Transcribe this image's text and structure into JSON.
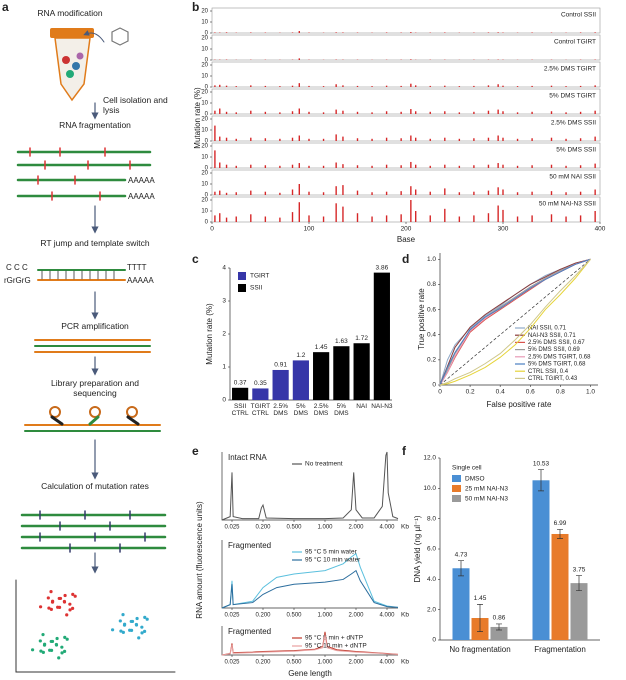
{
  "workflow": {
    "label": "a",
    "steps": [
      "RNA modification",
      "Cell isolation and lysis",
      "RNA fragmentation",
      "RT jump and template switch",
      "PCR amplification",
      "Library preparation and sequencing",
      "Calculation of mutation rates"
    ],
    "poly_a": [
      "AAAAA",
      "AAAAA"
    ],
    "template": {
      "top": "C C C",
      "bottom": "rGrGrG",
      "tail_top": "TTTT",
      "tail_bottom": "AAAAA"
    }
  },
  "chart_data": [
    {
      "type": "spikes",
      "label": "b",
      "ylabel": "Mutation rate (%)",
      "xlabel": "Base",
      "x": [
        3,
        8,
        15,
        25,
        40,
        55,
        70,
        83,
        90,
        100,
        115,
        128,
        135,
        150,
        165,
        180,
        195,
        205,
        210,
        225,
        240,
        255,
        270,
        285,
        295,
        300,
        315,
        330,
        350,
        365,
        380,
        395
      ],
      "xlim": [
        0,
        400
      ],
      "xticks": [
        0,
        100,
        200,
        300,
        400
      ],
      "ylim": [
        0,
        20
      ],
      "yticks": [
        0,
        10,
        20
      ],
      "color": "#d62728",
      "series": [
        {
          "name": "Control SSII",
          "values": [
            0.5,
            0.4,
            0.6,
            0.3,
            0.5,
            0.4,
            0.3,
            0.5,
            1.8,
            0.4,
            0.3,
            0.6,
            0.5,
            0.4,
            0.3,
            0.5,
            0.4,
            0.8,
            0.3,
            0.4,
            0.5,
            0.3,
            0.4,
            0.5,
            0.6,
            0.4,
            0.3,
            0.5,
            0.4,
            0.3,
            0.5,
            0.6
          ]
        },
        {
          "name": "Control TGIRT",
          "values": [
            0.3,
            0.3,
            0.4,
            0.2,
            0.3,
            0.3,
            0.2,
            0.3,
            1.5,
            0.3,
            0.2,
            0.4,
            0.3,
            0.3,
            0.2,
            0.3,
            0.3,
            0.6,
            0.2,
            0.3,
            0.3,
            0.2,
            0.3,
            0.3,
            0.4,
            0.3,
            0.2,
            0.3,
            0.3,
            0.2,
            0.3,
            0.4
          ]
        },
        {
          "name": "2.5% DMS TGIRT",
          "values": [
            1.5,
            2,
            1.2,
            0.8,
            1.5,
            1,
            0.8,
            1.2,
            3.5,
            1,
            0.8,
            2.5,
            1.5,
            1,
            0.8,
            1.2,
            1,
            3,
            1.5,
            1,
            1.2,
            0.8,
            1,
            1.5,
            2.5,
            1.2,
            0.8,
            1,
            1.2,
            0.8,
            1,
            1.5
          ]
        },
        {
          "name": "5% DMS TGIRT",
          "values": [
            3,
            5,
            2,
            1.5,
            3,
            2,
            1.5,
            2.5,
            5,
            2,
            1.5,
            4,
            3,
            2,
            1.5,
            2.5,
            2,
            4.5,
            2.5,
            2,
            2.5,
            1.5,
            2,
            3,
            4,
            2.5,
            1.5,
            2,
            2.5,
            1.5,
            2,
            3
          ]
        },
        {
          "name": "2.5% DMS SSII",
          "values": [
            14,
            4,
            3,
            2,
            3,
            2.5,
            2,
            3,
            5,
            2,
            2,
            6,
            4,
            2.5,
            2,
            3,
            2.5,
            5,
            3,
            2,
            3,
            2,
            2.5,
            3,
            5,
            3,
            2,
            2.5,
            3,
            2,
            2.5,
            4
          ]
        },
        {
          "name": "5% DMS SSII",
          "values": [
            16,
            5,
            3,
            2,
            3,
            2.5,
            2,
            3,
            4.5,
            2,
            2,
            5,
            3.5,
            2.5,
            2,
            3,
            2.5,
            5.5,
            3,
            2,
            3,
            2,
            2.5,
            3,
            4.5,
            3,
            2,
            2.5,
            3,
            2,
            2.5,
            4
          ]
        },
        {
          "name": "50 mM NAI SSII",
          "values": [
            3,
            4,
            2,
            2.5,
            4,
            3,
            2,
            5,
            10,
            3,
            2.5,
            8,
            9,
            4,
            2.5,
            3,
            3.5,
            8,
            5,
            3,
            6,
            2.5,
            3,
            4,
            7,
            5,
            2.5,
            3,
            3.5,
            2.5,
            3,
            5
          ]
        },
        {
          "name": "50 mM NAI-N3 SSII",
          "values": [
            6,
            8,
            4,
            5,
            7,
            5,
            4,
            9,
            18,
            6,
            5,
            17,
            14,
            8,
            5,
            6,
            7,
            20,
            10,
            6,
            12,
            5,
            6,
            8,
            15,
            11,
            5,
            6,
            7,
            5,
            6,
            10
          ]
        }
      ]
    },
    {
      "type": "bar",
      "label": "c",
      "ylabel": "Mutation rate (%)",
      "categories": [
        "SSII CTRL",
        "TGIRT CTRL",
        "2.5% DMS",
        "5% DMS",
        "2.5% DMS",
        "5% DMS",
        "NAI",
        "NAI-N3"
      ],
      "series": [
        {
          "name": "TGIRT",
          "color": "#3636a8",
          "values": [
            null,
            0.35,
            0.91,
            1.2,
            null,
            null,
            null,
            null
          ]
        },
        {
          "name": "SSII",
          "color": "#000000",
          "values": [
            0.37,
            null,
            null,
            null,
            1.45,
            1.63,
            1.72,
            3.86
          ]
        }
      ],
      "ylim": [
        0,
        4
      ],
      "yticks": [
        0,
        1,
        2,
        3,
        4
      ]
    },
    {
      "type": "line",
      "label": "d",
      "xlabel": "False positive rate",
      "ylabel": "True positive rate",
      "x": [
        0,
        0.05,
        0.1,
        0.2,
        0.3,
        0.4,
        0.5,
        0.6,
        0.7,
        0.8,
        0.9,
        1
      ],
      "xlim": [
        0,
        1.05
      ],
      "xticks": [
        0,
        0.2,
        0.4,
        0.6,
        0.8,
        {
          "value": 1,
          "label": "1.0"
        }
      ],
      "ylim": [
        0,
        1.05
      ],
      "yticks": [
        0,
        0.2,
        0.4,
        0.6,
        0.8,
        {
          "value": 1,
          "label": "1.0"
        }
      ],
      "series": [
        {
          "name": "NAI SSII, 0.71",
          "color": "#8fa9c8",
          "values": [
            0,
            0.2,
            0.32,
            0.45,
            0.55,
            0.63,
            0.72,
            0.8,
            0.87,
            0.92,
            0.96,
            1
          ]
        },
        {
          "name": "NAI-N3 SSII, 0.71",
          "color": "#8b3a3a",
          "values": [
            0,
            0.15,
            0.3,
            0.46,
            0.56,
            0.64,
            0.72,
            0.8,
            0.86,
            0.92,
            0.97,
            1
          ]
        },
        {
          "name": "2.5% DMS SSII, 0.67",
          "color": "#d9534f",
          "values": [
            0,
            0.1,
            0.22,
            0.42,
            0.52,
            0.6,
            0.68,
            0.76,
            0.84,
            0.9,
            0.96,
            1
          ]
        },
        {
          "name": "5% DMS SSII, 0.69",
          "color": "#9a9a9a",
          "values": [
            0,
            0.12,
            0.25,
            0.44,
            0.54,
            0.62,
            0.7,
            0.78,
            0.85,
            0.91,
            0.96,
            1
          ]
        },
        {
          "name": "2.5% DMS TGIRT, 0.68",
          "color": "#e899b5",
          "values": [
            0,
            0.1,
            0.23,
            0.43,
            0.53,
            0.61,
            0.69,
            0.77,
            0.84,
            0.9,
            0.96,
            1
          ]
        },
        {
          "name": "5% DMS TGIRT, 0.68",
          "color": "#4a7fc1",
          "values": [
            0,
            0.14,
            0.26,
            0.44,
            0.54,
            0.61,
            0.69,
            0.77,
            0.84,
            0.9,
            0.96,
            1
          ]
        },
        {
          "name": "CTRL SSII, 0.4",
          "color": "#e6d43a",
          "values": [
            0,
            0.01,
            0.03,
            0.08,
            0.14,
            0.22,
            0.32,
            0.45,
            0.6,
            0.72,
            0.85,
            1
          ]
        },
        {
          "name": "CTRL TGIRT, 0.43",
          "color": "#cfc78a",
          "values": [
            0,
            0.02,
            0.05,
            0.1,
            0.17,
            0.25,
            0.36,
            0.48,
            0.62,
            0.75,
            0.87,
            1
          ]
        }
      ]
    },
    {
      "type": "trace",
      "label": "e",
      "title": "Intact RNA",
      "ylabel": "RNA amount (fluorescence units)",
      "xunit": "Kb",
      "x": [
        0.02,
        0.024,
        0.025,
        0.027,
        0.05,
        0.15,
        0.18,
        0.2,
        0.22,
        0.5,
        1,
        1.5,
        1.8,
        1.9,
        2,
        2.3,
        3,
        3.6,
        3.9,
        4,
        4.1,
        4.5,
        5
      ],
      "xlim": [
        0.02,
        5
      ],
      "ylim": [
        0,
        100
      ],
      "xticks": [
        {
          "value": 0.025,
          "label": "0.025"
        },
        {
          "value": 0.2,
          "label": "0.200"
        },
        {
          "value": 0.5,
          "label": "0.500"
        },
        {
          "value": 1,
          "label": "1.000"
        },
        {
          "value": 2,
          "label": "2.000"
        },
        {
          "value": 4,
          "label": "4.000"
        }
      ],
      "series": [
        {
          "name": "No treatment",
          "color": "#555555",
          "values": [
            0,
            5,
            70,
            5,
            2,
            2,
            18,
            22,
            3,
            2,
            2,
            3,
            15,
            70,
            15,
            3,
            3,
            20,
            95,
            100,
            40,
            5,
            2
          ]
        }
      ]
    },
    {
      "type": "trace",
      "title": "Fragmented",
      "xunit": "Kb",
      "x": [
        0.02,
        0.024,
        0.025,
        0.027,
        0.1,
        0.2,
        0.3,
        0.5,
        1,
        1.5,
        1.8,
        2,
        2.2,
        3,
        4,
        5
      ],
      "xlim": [
        0.02,
        5
      ],
      "ylim": [
        0,
        100
      ],
      "xticks": [
        {
          "value": 0.025,
          "label": "0.025"
        },
        {
          "value": 0.2,
          "label": "0.200"
        },
        {
          "value": 0.5,
          "label": "0.500"
        },
        {
          "value": 1,
          "label": "1.000"
        },
        {
          "value": 2,
          "label": "2.000"
        },
        {
          "value": 4,
          "label": "4.000"
        }
      ],
      "series": [
        {
          "name": "95 °C 5 min water",
          "color": "#5bc0de",
          "values": [
            0,
            5,
            40,
            5,
            10,
            30,
            45,
            50,
            55,
            65,
            75,
            80,
            60,
            10,
            3,
            1
          ]
        },
        {
          "name": "95 °C 10 min water",
          "color": "#2c6e9e",
          "values": [
            0,
            5,
            35,
            5,
            8,
            20,
            30,
            35,
            38,
            42,
            50,
            55,
            40,
            8,
            2,
            1
          ]
        }
      ]
    },
    {
      "type": "trace",
      "title": "Fragmented",
      "xunit": "Kb",
      "xlabel": "Gene length",
      "x": [
        0.02,
        0.024,
        0.025,
        0.027,
        0.1,
        0.2,
        0.5,
        0.8,
        0.95,
        1,
        1.05,
        1.3,
        2,
        3,
        4,
        5
      ],
      "xlim": [
        0.02,
        5
      ],
      "ylim": [
        0,
        100
      ],
      "xticks": [
        {
          "value": 0.025,
          "label": "0.025"
        },
        {
          "value": 0.2,
          "label": "0.200"
        },
        {
          "value": 0.5,
          "label": "0.500"
        },
        {
          "value": 1,
          "label": "1.000"
        },
        {
          "value": 2,
          "label": "2.000"
        },
        {
          "value": 4,
          "label": "4.000"
        }
      ],
      "series": [
        {
          "name": "95 °C 5 min + dNTP",
          "color": "#c0392b",
          "values": [
            0,
            5,
            40,
            8,
            10,
            12,
            15,
            20,
            30,
            80,
            30,
            18,
            12,
            8,
            5,
            2
          ]
        },
        {
          "name": "95 °C 10 min + dNTP",
          "color": "#e8a0a0",
          "values": [
            0,
            4,
            35,
            6,
            8,
            10,
            13,
            18,
            25,
            70,
            25,
            15,
            10,
            7,
            4,
            2
          ]
        }
      ]
    },
    {
      "type": "grouped_bar",
      "label": "f",
      "ylabel": "DNA yield (ng μl⁻¹)",
      "legend_title": "Single cell",
      "categories": [
        "No fragmentation",
        "Fragmentation"
      ],
      "series": [
        {
          "name": "DMSO",
          "color": "#4a8fd4",
          "values": [
            4.73,
            10.53
          ],
          "errors": [
            0.5,
            0.7
          ]
        },
        {
          "name": "25 mM NAI-N3",
          "color": "#e87b2a",
          "values": [
            1.45,
            6.99
          ],
          "errors": [
            0.9,
            0.3
          ]
        },
        {
          "name": "50 mM NAI-N3",
          "color": "#9a9a9a",
          "values": [
            0.86,
            3.75
          ],
          "errors": [
            0.2,
            0.5
          ]
        }
      ],
      "ylim": [
        0,
        12
      ],
      "yticks": [
        0,
        {
          "value": 2,
          "label": "2.0"
        },
        {
          "value": 4,
          "label": "4.0"
        },
        {
          "value": 6,
          "label": "6.0"
        },
        {
          "value": 8,
          "label": "8.0"
        },
        {
          "value": 10,
          "label": "10.0"
        },
        {
          "value": 12,
          "label": "12.0"
        }
      ]
    }
  ]
}
